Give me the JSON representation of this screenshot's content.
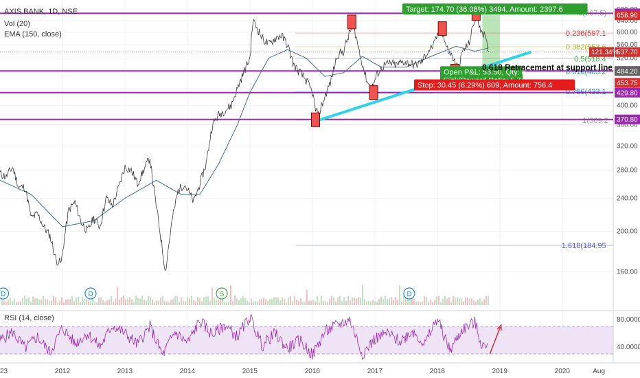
{
  "chart_data": {
    "type": "line",
    "title": "AXIS BANK, 1D, NSE",
    "indicators": {
      "volume": "Vol (20)",
      "ema": "EMA (150, close)",
      "rsi": "RSI (14, close)"
    },
    "x_ticks": [
      "23",
      "2012",
      "2013",
      "2014",
      "2015",
      "2016",
      "2017",
      "2018",
      "2019",
      "2020",
      "Aug"
    ],
    "y_ticks": [
      160,
      200,
      240,
      280,
      320,
      360,
      400,
      440,
      480,
      520,
      560,
      600,
      640,
      680
    ],
    "y_log": true,
    "ylim": [
      130,
      690
    ],
    "rsi_ticks": [
      "80.0000",
      "40.0000"
    ],
    "rsi_range": [
      20,
      90
    ],
    "price_series": [
      {
        "x": 2011.0,
        "y": 275
      },
      {
        "x": 2011.1,
        "y": 270
      },
      {
        "x": 2011.2,
        "y": 285
      },
      {
        "x": 2011.3,
        "y": 255
      },
      {
        "x": 2011.4,
        "y": 255
      },
      {
        "x": 2011.5,
        "y": 215
      },
      {
        "x": 2011.6,
        "y": 220
      },
      {
        "x": 2011.7,
        "y": 205
      },
      {
        "x": 2011.8,
        "y": 195
      },
      {
        "x": 2011.9,
        "y": 170
      },
      {
        "x": 2011.98,
        "y": 168
      },
      {
        "x": 2012.1,
        "y": 225
      },
      {
        "x": 2012.2,
        "y": 235
      },
      {
        "x": 2012.3,
        "y": 210
      },
      {
        "x": 2012.4,
        "y": 200
      },
      {
        "x": 2012.5,
        "y": 215
      },
      {
        "x": 2012.6,
        "y": 205
      },
      {
        "x": 2012.7,
        "y": 240
      },
      {
        "x": 2012.8,
        "y": 230
      },
      {
        "x": 2012.9,
        "y": 255
      },
      {
        "x": 2013.0,
        "y": 285
      },
      {
        "x": 2013.1,
        "y": 280
      },
      {
        "x": 2013.2,
        "y": 260
      },
      {
        "x": 2013.3,
        "y": 280
      },
      {
        "x": 2013.4,
        "y": 300
      },
      {
        "x": 2013.45,
        "y": 260
      },
      {
        "x": 2013.5,
        "y": 230
      },
      {
        "x": 2013.6,
        "y": 180
      },
      {
        "x": 2013.65,
        "y": 160
      },
      {
        "x": 2013.75,
        "y": 210
      },
      {
        "x": 2013.85,
        "y": 250
      },
      {
        "x": 2013.95,
        "y": 260
      },
      {
        "x": 2014.1,
        "y": 235
      },
      {
        "x": 2014.2,
        "y": 260
      },
      {
        "x": 2014.3,
        "y": 290
      },
      {
        "x": 2014.4,
        "y": 360
      },
      {
        "x": 2014.5,
        "y": 380
      },
      {
        "x": 2014.6,
        "y": 390
      },
      {
        "x": 2014.7,
        "y": 400
      },
      {
        "x": 2014.8,
        "y": 440
      },
      {
        "x": 2014.9,
        "y": 480
      },
      {
        "x": 2015.0,
        "y": 520
      },
      {
        "x": 2015.05,
        "y": 640
      },
      {
        "x": 2015.1,
        "y": 620
      },
      {
        "x": 2015.2,
        "y": 580
      },
      {
        "x": 2015.3,
        "y": 560
      },
      {
        "x": 2015.4,
        "y": 580
      },
      {
        "x": 2015.5,
        "y": 590
      },
      {
        "x": 2015.6,
        "y": 560
      },
      {
        "x": 2015.7,
        "y": 500
      },
      {
        "x": 2015.8,
        "y": 480
      },
      {
        "x": 2015.9,
        "y": 460
      },
      {
        "x": 2016.0,
        "y": 430
      },
      {
        "x": 2016.05,
        "y": 390
      },
      {
        "x": 2016.1,
        "y": 380
      },
      {
        "x": 2016.2,
        "y": 420
      },
      {
        "x": 2016.3,
        "y": 460
      },
      {
        "x": 2016.4,
        "y": 530
      },
      {
        "x": 2016.5,
        "y": 540
      },
      {
        "x": 2016.6,
        "y": 600
      },
      {
        "x": 2016.65,
        "y": 630
      },
      {
        "x": 2016.75,
        "y": 540
      },
      {
        "x": 2016.85,
        "y": 470
      },
      {
        "x": 2016.9,
        "y": 450
      },
      {
        "x": 2016.95,
        "y": 440
      },
      {
        "x": 2017.05,
        "y": 480
      },
      {
        "x": 2017.15,
        "y": 500
      },
      {
        "x": 2017.25,
        "y": 505
      },
      {
        "x": 2017.35,
        "y": 500
      },
      {
        "x": 2017.45,
        "y": 510
      },
      {
        "x": 2017.55,
        "y": 505
      },
      {
        "x": 2017.65,
        "y": 500
      },
      {
        "x": 2017.75,
        "y": 510
      },
      {
        "x": 2017.85,
        "y": 540
      },
      {
        "x": 2017.95,
        "y": 560
      },
      {
        "x": 2018.05,
        "y": 620
      },
      {
        "x": 2018.15,
        "y": 550
      },
      {
        "x": 2018.25,
        "y": 520
      },
      {
        "x": 2018.3,
        "y": 500
      },
      {
        "x": 2018.35,
        "y": 490
      },
      {
        "x": 2018.4,
        "y": 540
      },
      {
        "x": 2018.5,
        "y": 560
      },
      {
        "x": 2018.55,
        "y": 600
      },
      {
        "x": 2018.62,
        "y": 660
      },
      {
        "x": 2018.68,
        "y": 620
      },
      {
        "x": 2018.75,
        "y": 590
      },
      {
        "x": 2018.82,
        "y": 537.7
      }
    ],
    "ema_series": [
      {
        "x": 2011.0,
        "y": 265
      },
      {
        "x": 2011.5,
        "y": 245
      },
      {
        "x": 2012.0,
        "y": 205
      },
      {
        "x": 2012.5,
        "y": 212
      },
      {
        "x": 2013.0,
        "y": 240
      },
      {
        "x": 2013.5,
        "y": 265
      },
      {
        "x": 2013.9,
        "y": 245
      },
      {
        "x": 2014.2,
        "y": 245
      },
      {
        "x": 2014.5,
        "y": 290
      },
      {
        "x": 2014.8,
        "y": 360
      },
      {
        "x": 2015.0,
        "y": 430
      },
      {
        "x": 2015.3,
        "y": 520
      },
      {
        "x": 2015.6,
        "y": 545
      },
      {
        "x": 2015.9,
        "y": 520
      },
      {
        "x": 2016.2,
        "y": 470
      },
      {
        "x": 2016.5,
        "y": 480
      },
      {
        "x": 2016.8,
        "y": 525
      },
      {
        "x": 2017.1,
        "y": 495
      },
      {
        "x": 2017.5,
        "y": 495
      },
      {
        "x": 2017.9,
        "y": 525
      },
      {
        "x": 2018.3,
        "y": 555
      },
      {
        "x": 2018.6,
        "y": 540
      },
      {
        "x": 2018.82,
        "y": 550
      }
    ],
    "rsi_series": [
      {
        "x": 2011.0,
        "y": 50
      },
      {
        "x": 2011.2,
        "y": 62
      },
      {
        "x": 2011.4,
        "y": 38
      },
      {
        "x": 2011.6,
        "y": 55
      },
      {
        "x": 2011.8,
        "y": 32
      },
      {
        "x": 2012.0,
        "y": 68
      },
      {
        "x": 2012.2,
        "y": 45
      },
      {
        "x": 2012.4,
        "y": 60
      },
      {
        "x": 2012.6,
        "y": 40
      },
      {
        "x": 2012.8,
        "y": 72
      },
      {
        "x": 2013.0,
        "y": 60
      },
      {
        "x": 2013.2,
        "y": 44
      },
      {
        "x": 2013.4,
        "y": 70
      },
      {
        "x": 2013.6,
        "y": 28
      },
      {
        "x": 2013.8,
        "y": 62
      },
      {
        "x": 2014.0,
        "y": 46
      },
      {
        "x": 2014.2,
        "y": 78
      },
      {
        "x": 2014.4,
        "y": 58
      },
      {
        "x": 2014.6,
        "y": 72
      },
      {
        "x": 2014.8,
        "y": 55
      },
      {
        "x": 2015.0,
        "y": 84
      },
      {
        "x": 2015.2,
        "y": 42
      },
      {
        "x": 2015.4,
        "y": 60
      },
      {
        "x": 2015.6,
        "y": 38
      },
      {
        "x": 2015.8,
        "y": 50
      },
      {
        "x": 2016.0,
        "y": 28
      },
      {
        "x": 2016.2,
        "y": 62
      },
      {
        "x": 2016.4,
        "y": 72
      },
      {
        "x": 2016.6,
        "y": 80
      },
      {
        "x": 2016.8,
        "y": 30
      },
      {
        "x": 2017.0,
        "y": 52
      },
      {
        "x": 2017.2,
        "y": 60
      },
      {
        "x": 2017.4,
        "y": 48
      },
      {
        "x": 2017.6,
        "y": 64
      },
      {
        "x": 2017.8,
        "y": 44
      },
      {
        "x": 2018.0,
        "y": 82
      },
      {
        "x": 2018.2,
        "y": 35
      },
      {
        "x": 2018.4,
        "y": 66
      },
      {
        "x": 2018.6,
        "y": 76
      },
      {
        "x": 2018.7,
        "y": 45
      },
      {
        "x": 2018.82,
        "y": 36
      }
    ],
    "fib_levels": [
      {
        "label": "0(667.5)",
        "price": 667.5,
        "color": "#9e9e9e"
      },
      {
        "label": "0.236(597.1",
        "price": 597.1,
        "color": "#e53935"
      },
      {
        "label": "0.382(553.6",
        "price": 553.6,
        "color": "#aab02c"
      },
      {
        "label": "0.5(518.4",
        "price": 518.4,
        "color": "#4caf50"
      },
      {
        "label": "0.618(483.2",
        "price": 483.2,
        "color": "#26a69a"
      },
      {
        "label": "0.786(433.1",
        "price": 433.1,
        "color": "#2f7ec4"
      },
      {
        "label": "1(369.2",
        "price": 369.2,
        "color": "#9e9e9e"
      },
      {
        "label": "1.618(184.95",
        "price": 184.95,
        "color": "#5757c7"
      }
    ],
    "horizontal_lines": [
      665.85,
      484.35,
      429.8,
      370.8
    ],
    "price_badges": [
      {
        "text": "665.85",
        "price": 665.85,
        "color": "#9c27b0"
      },
      {
        "text": "658.90",
        "price": 658.9,
        "color": "#d32f2f"
      },
      {
        "text": "537.70",
        "price": 537.7,
        "color": "#d32f2f"
      },
      {
        "text": "484.35",
        "price": 484.35,
        "color": "#9c27b0"
      },
      {
        "text": "484.20",
        "price": 484.2,
        "color": "#616161"
      },
      {
        "text": "453.75",
        "price": 453.75,
        "color": "#d32f2f"
      },
      {
        "text": "429.80",
        "price": 429.8,
        "color": "#9c27b0"
      },
      {
        "text": "370.80",
        "price": 370.8,
        "color": "#9c27b0"
      }
    ],
    "pct_badge": {
      "text": "121.34%",
      "price": 537.7,
      "color": "#d32f2f"
    },
    "trend_line": [
      {
        "x": 2016.1,
        "y": 369.2
      },
      {
        "x": 2019.5,
        "y": 538
      }
    ],
    "pivot_markers": [
      {
        "x": 2016.05,
        "y": 370
      },
      {
        "x": 2016.63,
        "y": 635
      },
      {
        "x": 2016.98,
        "y": 430
      },
      {
        "x": 2018.08,
        "y": 612
      },
      {
        "x": 2018.28,
        "y": 484
      },
      {
        "x": 2018.62,
        "y": 665
      }
    ],
    "position": {
      "entry_x": 2018.72,
      "end_x": 2019.0,
      "entry": 484.2,
      "target": 658.9,
      "stop": 453.75,
      "target_label": "Target: 174.70 (36.08%) 3494, Amount: 2397.6",
      "pnl_label": "Open P&L: 53.50, Qty: 8",
      "rr_label": "Risk/Reward Ratio: 5.74",
      "stop_label": "Stop: 30.45 (6.29%) 609, Amount: 756.4"
    },
    "annotation": "0.618 Retracement at support line",
    "dividend_markers": [
      {
        "x": 2011.05,
        "label": "D"
      },
      {
        "x": 2012.45,
        "label": "D"
      },
      {
        "x": 2014.55,
        "label": "S"
      },
      {
        "x": 2017.55,
        "label": "D"
      }
    ],
    "rsi_arrow": [
      {
        "x": 2018.84,
        "y": 30
      },
      {
        "x": 2019.02,
        "y": 72
      }
    ]
  },
  "colors": {
    "price_line": "#3a3a3a",
    "ema_line": "#3f6f8f",
    "level_line": "#9c27b0",
    "trend_line": "#2fd3ea",
    "marker_fill": "#ef5350",
    "target_zone": "#8bd48b",
    "target_box": "#2e9e2e",
    "stop_box": "#e51c1c",
    "rsi_line": "#9c27b0",
    "rsi_band": "#efe3f6",
    "arrow": "#d32f2f"
  }
}
